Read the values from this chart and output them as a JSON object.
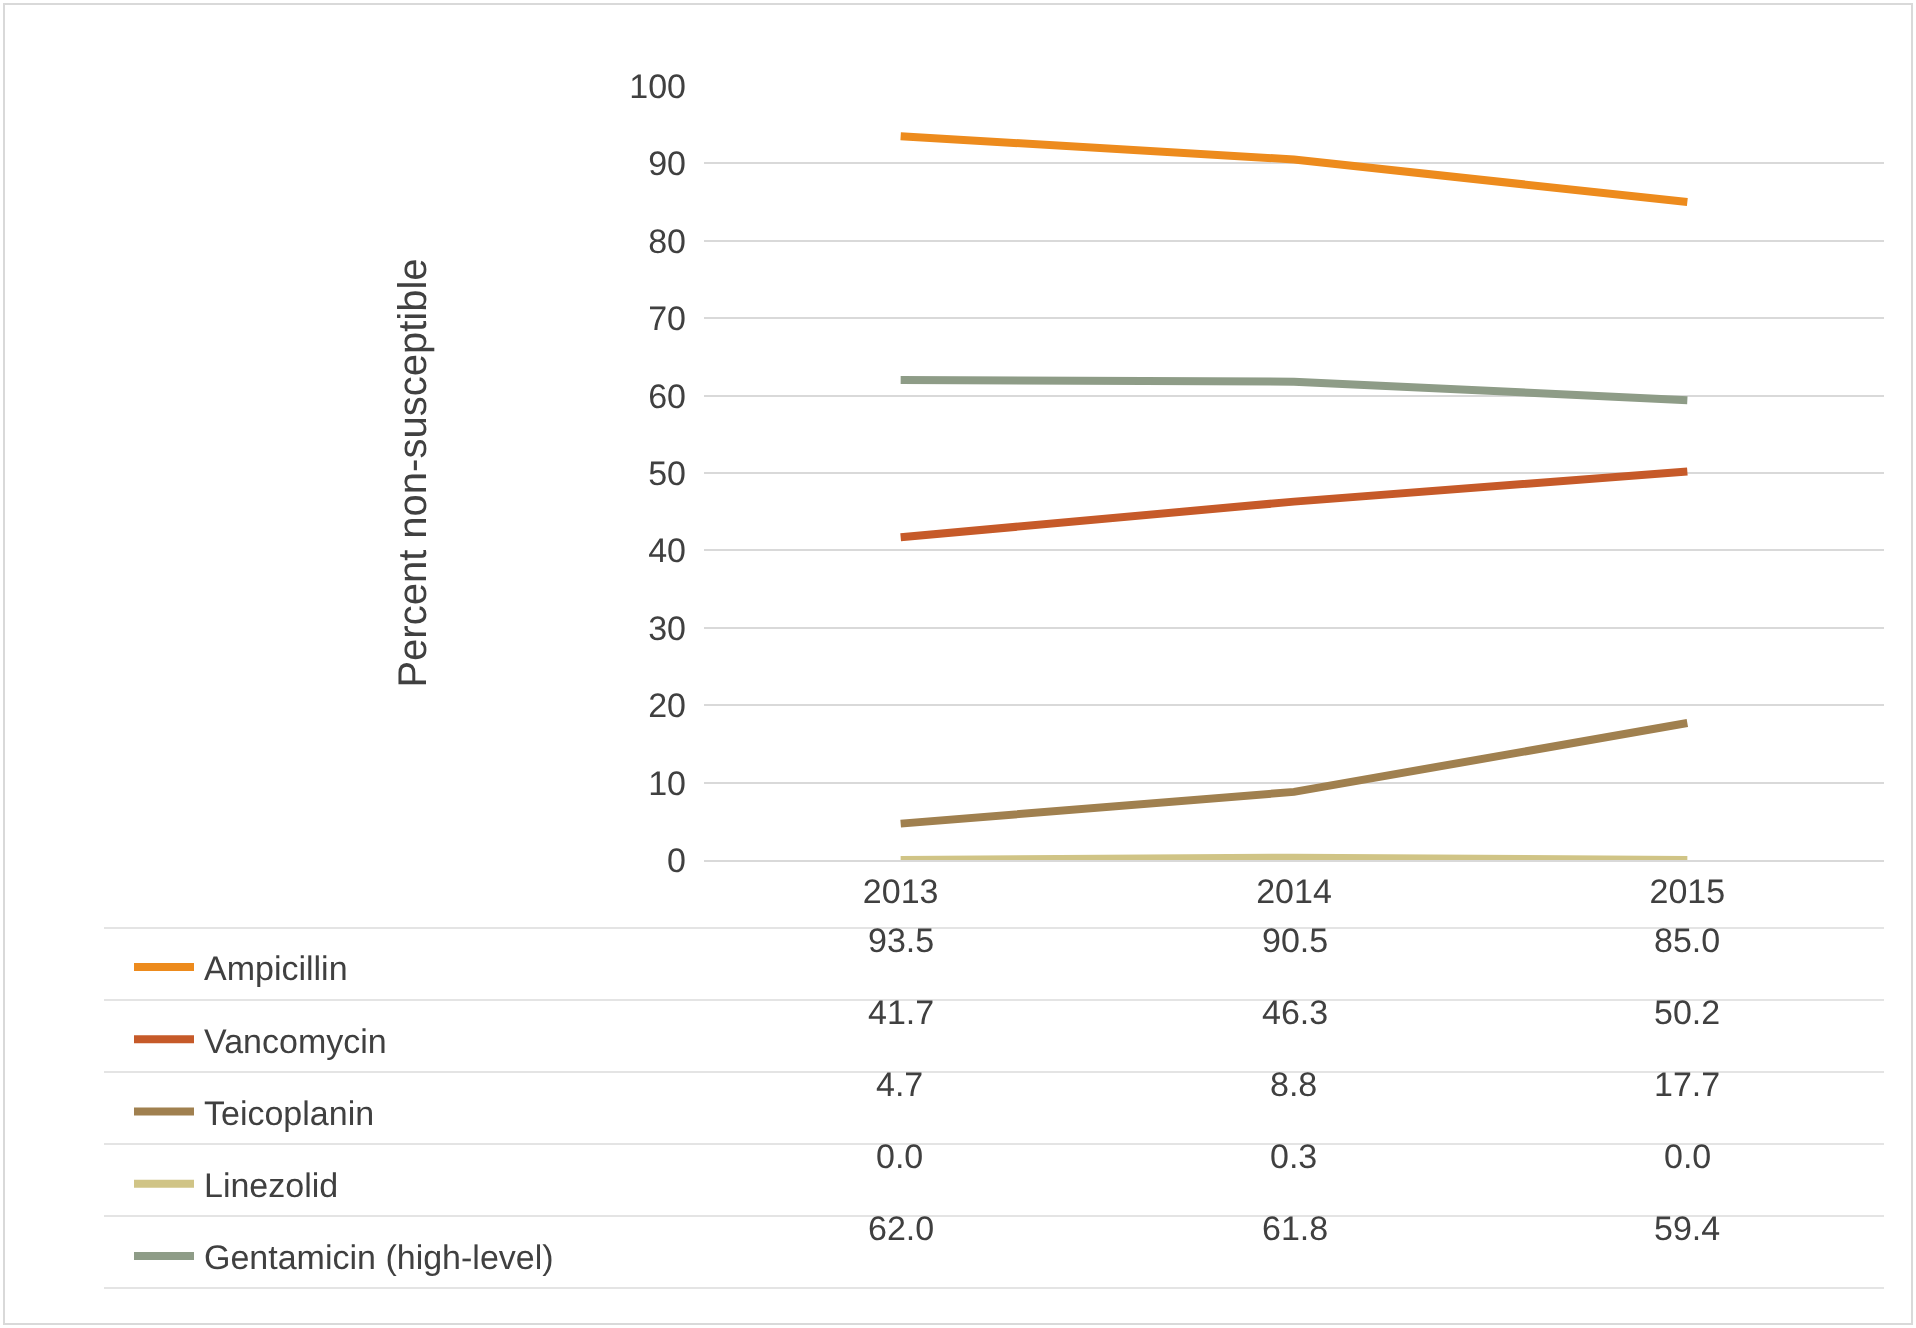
{
  "chart_data": {
    "type": "line",
    "ylabel": "Percent non-susceptible",
    "categories": [
      "2013",
      "2014",
      "2015"
    ],
    "series": [
      {
        "name": "Ampicillin",
        "color": "#ed8b1d",
        "values": [
          93.5,
          90.5,
          85.0
        ]
      },
      {
        "name": "Vancomycin",
        "color": "#c65a29",
        "values": [
          41.7,
          46.3,
          50.2
        ]
      },
      {
        "name": "Teicoplanin",
        "color": "#a0804f",
        "values": [
          4.7,
          8.8,
          17.7
        ]
      },
      {
        "name": "Linezolid",
        "color": "#d0c486",
        "values": [
          0.0,
          0.3,
          0.0
        ]
      },
      {
        "name": "Gentamicin (high-level)",
        "color": "#8e9c87",
        "values": [
          62.0,
          61.8,
          59.4
        ]
      }
    ],
    "value_labels": [
      [
        "93.5",
        "90.5",
        "85.0"
      ],
      [
        "41.7",
        "46.3",
        "50.2"
      ],
      [
        "4.7",
        "8.8",
        "17.7"
      ],
      [
        "0.0",
        "0.3",
        "0.0"
      ],
      [
        "62.0",
        "61.8",
        "59.4"
      ]
    ],
    "ylim": [
      0,
      100
    ],
    "yticks": [
      0,
      10,
      20,
      30,
      40,
      50,
      60,
      70,
      80,
      90,
      100
    ],
    "grid": "y",
    "legend": "bottom left",
    "marker": "none",
    "line_style": "solid"
  }
}
